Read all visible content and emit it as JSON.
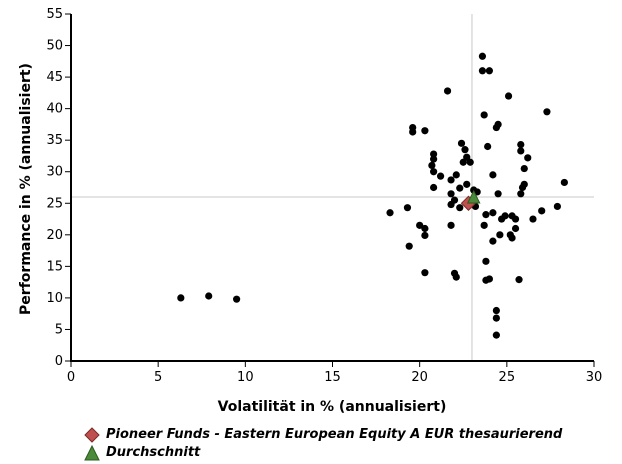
{
  "chart_data": {
    "type": "scatter",
    "xlabel": "Volatilität in % (annualisiert)",
    "ylabel": "Performance in % (annualisiert)",
    "xlim": [
      0,
      30
    ],
    "ylim": [
      0,
      55
    ],
    "xticks": [
      "0",
      "5",
      "10",
      "15",
      "20",
      "25",
      "30"
    ],
    "yticks": [
      "0",
      "5",
      "10",
      "15",
      "20",
      "25",
      "30",
      "35",
      "40",
      "45",
      "50",
      "55"
    ],
    "grid": false,
    "reference_lines": {
      "x": 23,
      "y": 26
    },
    "legend_position": "bottom",
    "series": [
      {
        "name": "",
        "color": "#000000",
        "marker": "circle",
        "points": [
          [
            6.3,
            10
          ],
          [
            7.9,
            10.3
          ],
          [
            9.5,
            9.8
          ],
          [
            18.3,
            23.5
          ],
          [
            19.3,
            24.3
          ],
          [
            19.6,
            36.3
          ],
          [
            19.6,
            37
          ],
          [
            19.4,
            18.2
          ],
          [
            20,
            21.5
          ],
          [
            20.3,
            19.9
          ],
          [
            20.3,
            21
          ],
          [
            20.3,
            14
          ],
          [
            20.3,
            36.5
          ],
          [
            20.7,
            31
          ],
          [
            20.8,
            30
          ],
          [
            20.8,
            32
          ],
          [
            20.8,
            32.8
          ],
          [
            20.8,
            27.5
          ],
          [
            21.2,
            29.3
          ],
          [
            21.6,
            42.8
          ],
          [
            21.8,
            28.7
          ],
          [
            21.8,
            26.5
          ],
          [
            21.8,
            21.5
          ],
          [
            21.8,
            24.8
          ],
          [
            22,
            13.9
          ],
          [
            22,
            25.5
          ],
          [
            22.1,
            13.3
          ],
          [
            22.1,
            29.5
          ],
          [
            22.3,
            27.4
          ],
          [
            22.3,
            24.3
          ],
          [
            22.4,
            34.5
          ],
          [
            22.5,
            31.5
          ],
          [
            22.6,
            33.5
          ],
          [
            22.7,
            28
          ],
          [
            22.7,
            32.3
          ],
          [
            22.9,
            31.5
          ],
          [
            23.2,
            24.5
          ],
          [
            23.1,
            27.1
          ],
          [
            23.3,
            26.8
          ],
          [
            23.6,
            48.3
          ],
          [
            23.6,
            46
          ],
          [
            23.7,
            39
          ],
          [
            23.7,
            21.5
          ],
          [
            23.8,
            23.2
          ],
          [
            23.8,
            15.8
          ],
          [
            23.8,
            12.8
          ],
          [
            24,
            46
          ],
          [
            24,
            13
          ],
          [
            23.9,
            34
          ],
          [
            24.2,
            29.5
          ],
          [
            24.2,
            23.5
          ],
          [
            24.2,
            19
          ],
          [
            24.4,
            37
          ],
          [
            24.5,
            37.5
          ],
          [
            24.5,
            26.5
          ],
          [
            24.6,
            20
          ],
          [
            24.7,
            22.5
          ],
          [
            24.4,
            8
          ],
          [
            24.4,
            6.8
          ],
          [
            24.4,
            4.1
          ],
          [
            24.9,
            23
          ],
          [
            25.1,
            42
          ],
          [
            25.2,
            20
          ],
          [
            25.3,
            19.5
          ],
          [
            25.3,
            23
          ],
          [
            25.5,
            21
          ],
          [
            25.7,
            12.9
          ],
          [
            25.5,
            22.5
          ],
          [
            25.8,
            34.3
          ],
          [
            25.8,
            33.3
          ],
          [
            25.8,
            26.5
          ],
          [
            25.9,
            27.5
          ],
          [
            26,
            28
          ],
          [
            26,
            30.5
          ],
          [
            26.2,
            32.2
          ],
          [
            26.5,
            22.5
          ],
          [
            27,
            23.8
          ],
          [
            27.3,
            39.5
          ],
          [
            27.9,
            24.5
          ],
          [
            28.3,
            28.3
          ]
        ]
      },
      {
        "name": "Pioneer Funds - Eastern European Equity A EUR thesaurierend",
        "color": "#c0504d",
        "marker": "diamond",
        "points": [
          [
            22.8,
            25
          ]
        ]
      },
      {
        "name": "Durchschnitt",
        "color": "#4a8a3a",
        "marker": "triangle",
        "points": [
          [
            23.1,
            26
          ]
        ]
      }
    ]
  },
  "legend": {
    "fund_label": "Pioneer Funds - Eastern European Equity A EUR thesaurierend",
    "average_label": "Durchschnitt"
  }
}
